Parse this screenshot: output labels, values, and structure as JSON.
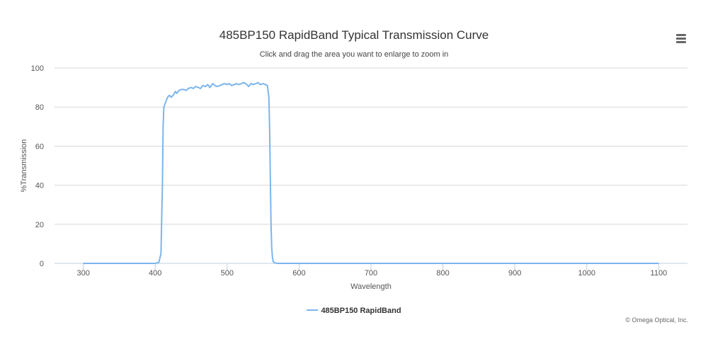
{
  "chart": {
    "title": "485BP150 RapidBand Typical Transmission Curve",
    "subtitle": "Click and drag the area you want to enlarge to zoom in",
    "menu_icon": "hamburger-menu-icon",
    "credits": "© Omega Optical, Inc."
  },
  "colors": {
    "series": "#7cb5ec",
    "grid": "#d8d8d8",
    "axis": "#c0d0e0"
  },
  "chart_data": {
    "type": "line",
    "title": "485BP150 RapidBand Typical Transmission Curve",
    "subtitle": "Click and drag the area you want to enlarge to zoom in",
    "xlabel": "Wavelength",
    "ylabel": "%Transmission",
    "xlim": [
      260,
      1140
    ],
    "ylim": [
      0,
      100
    ],
    "xticks": [
      300,
      400,
      500,
      600,
      700,
      800,
      900,
      1000,
      1100
    ],
    "yticks": [
      0,
      20,
      40,
      60,
      80,
      100
    ],
    "grid": true,
    "legend": "bottom-center",
    "series": [
      {
        "name": "485BP150 RapidBand",
        "color": "#7cb5ec",
        "x": [
          300,
          400,
          405,
          408,
          410,
          411,
          412,
          414,
          416,
          418,
          420,
          422,
          425,
          428,
          430,
          433,
          436,
          440,
          443,
          446,
          450,
          453,
          456,
          460,
          463,
          466,
          470,
          473,
          476,
          480,
          483,
          486,
          490,
          493,
          496,
          500,
          503,
          506,
          510,
          513,
          516,
          520,
          523,
          526,
          530,
          533,
          536,
          540,
          543,
          546,
          550,
          553,
          556,
          558,
          559,
          560,
          561,
          562,
          563,
          564,
          565,
          567,
          570,
          600,
          700,
          800,
          900,
          1000,
          1100
        ],
        "y": [
          0,
          0,
          0.5,
          5,
          40,
          70,
          80,
          82,
          84,
          85.5,
          86,
          85,
          86,
          88,
          87,
          88.5,
          89,
          89,
          88.5,
          89.5,
          90,
          89.5,
          90.5,
          90,
          89.5,
          91,
          90.5,
          91.5,
          90,
          92,
          91,
          90.5,
          91,
          91.5,
          92,
          91.5,
          92,
          91,
          91.5,
          92,
          91.5,
          92,
          92.5,
          92,
          90.5,
          92,
          91.5,
          92,
          92.5,
          91.5,
          92,
          91.5,
          91,
          85,
          70,
          45,
          20,
          8,
          3,
          1,
          0.5,
          0.2,
          0,
          0,
          0,
          0,
          0,
          0,
          0
        ]
      }
    ]
  }
}
